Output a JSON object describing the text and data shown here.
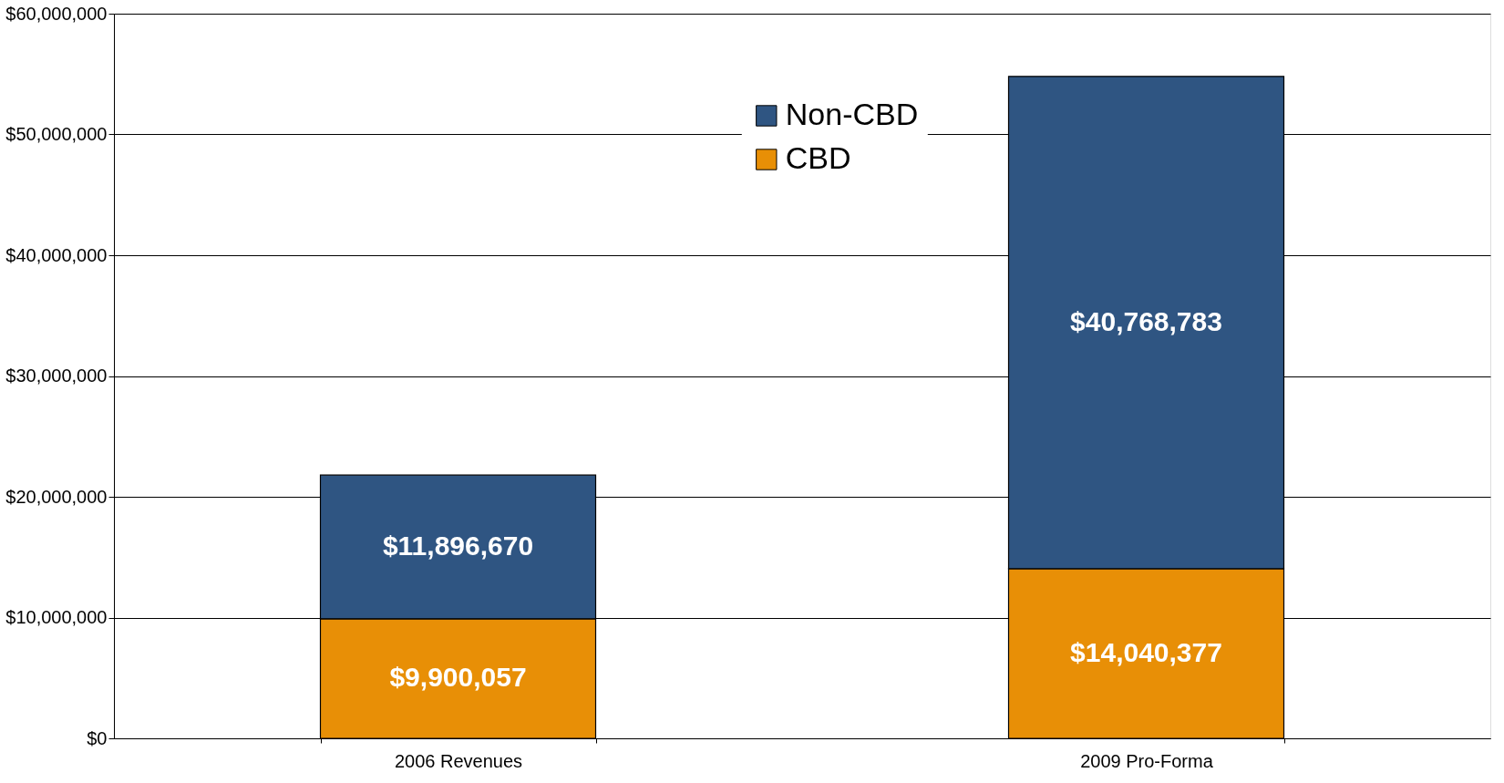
{
  "chart_data": {
    "type": "bar",
    "stacked": true,
    "categories": [
      "2006 Revenues",
      "2009 Pro-Forma"
    ],
    "series": [
      {
        "name": "CBD",
        "color": "#e88f06",
        "values": [
          9900057,
          14040377
        ],
        "value_labels": [
          "$9,900,057",
          "$14,040,377"
        ]
      },
      {
        "name": "Non-CBD",
        "color": "#2f5582",
        "values": [
          11896670,
          40768783
        ],
        "value_labels": [
          "$11,896,670",
          "$40,768,783"
        ]
      }
    ],
    "ylim": [
      0,
      60000000
    ],
    "yticks": [
      {
        "value": 0,
        "label": "$0"
      },
      {
        "value": 10000000,
        "label": "$10,000,000"
      },
      {
        "value": 20000000,
        "label": "$20,000,000"
      },
      {
        "value": 30000000,
        "label": "$30,000,000"
      },
      {
        "value": 40000000,
        "label": "$40,000,000"
      },
      {
        "value": 50000000,
        "label": "$50,000,000"
      },
      {
        "value": 60000000,
        "label": "$60,000,000"
      }
    ],
    "grid": "y",
    "legend": "top"
  }
}
